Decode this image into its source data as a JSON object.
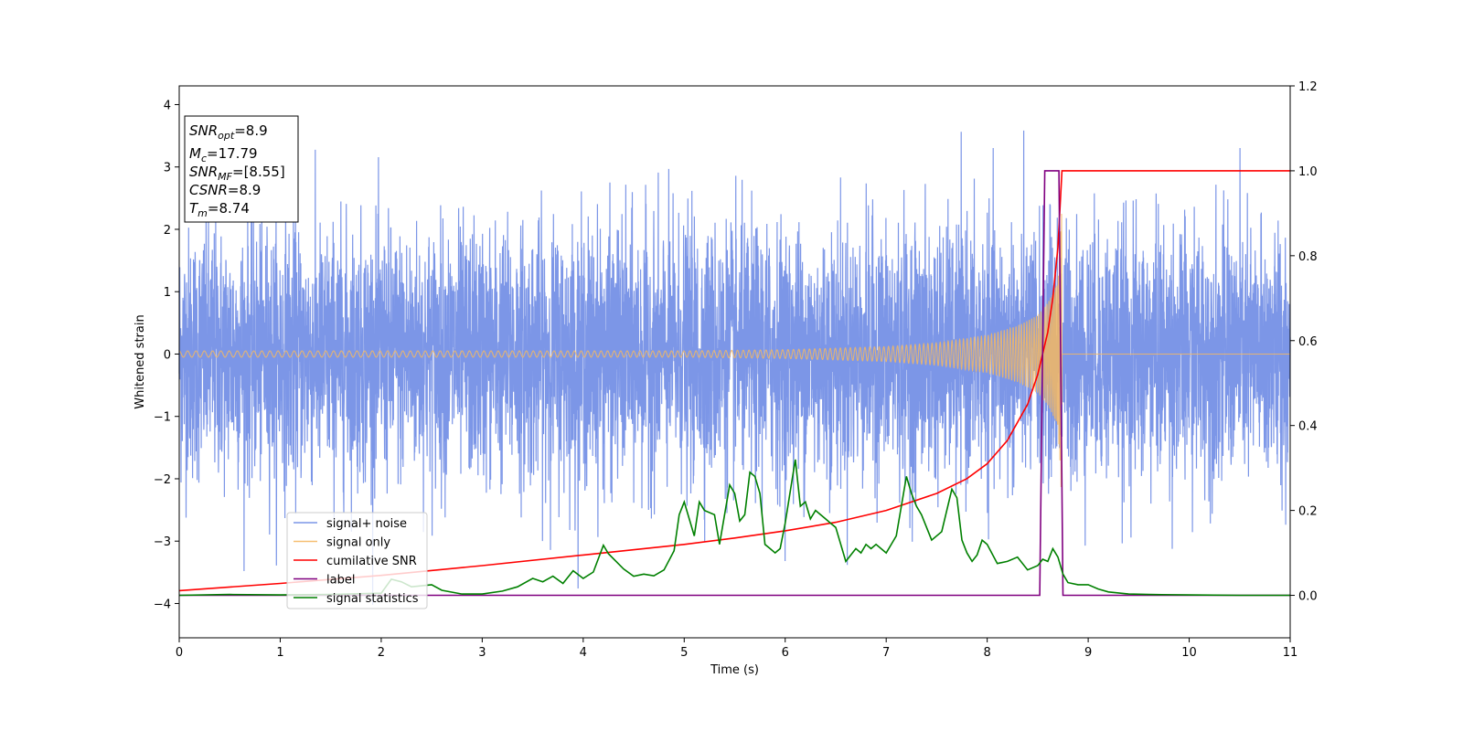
{
  "chart_data": {
    "type": "line",
    "xlabel": "Time (s)",
    "ylabel_left": "Whitened strain",
    "ylabel_right": "",
    "xlim": [
      0,
      11
    ],
    "ylim_left": [
      -4.55,
      4.3
    ],
    "ylim_right": [
      -0.1,
      1.2
    ],
    "xticks": [
      0,
      1,
      2,
      3,
      4,
      5,
      6,
      7,
      8,
      9,
      10,
      11
    ],
    "xtick_labels": [
      "0",
      "1",
      "2",
      "3",
      "4",
      "5",
      "6",
      "7",
      "8",
      "9",
      "10",
      "11"
    ],
    "yticks_left": [
      4,
      3,
      2,
      1,
      0,
      -1,
      -2,
      -3,
      -4
    ],
    "ytick_labels_left": [
      "4",
      "3",
      "2",
      "1",
      "0",
      "−1",
      "−2",
      "−3",
      "−4"
    ],
    "yticks_right": [
      1.2,
      1.0,
      0.8,
      0.6,
      0.4,
      0.2,
      0.0
    ],
    "ytick_labels_right": [
      "1.2",
      "1.0",
      "0.8",
      "0.6",
      "0.4",
      "0.2",
      "0.0"
    ],
    "grid": false,
    "legend_position": "lower-left",
    "info_box": {
      "lines": [
        {
          "base": "SNR",
          "sub": "opt",
          "rest": "=8.9"
        },
        {
          "base": "M",
          "sub": "c",
          "rest": "=17.79"
        },
        {
          "base": "SNR",
          "sub": "MF",
          "rest": "=[8.55]"
        },
        {
          "base": "CSNR",
          "sub": "",
          "rest": "=8.9"
        },
        {
          "base": "T",
          "sub": "m",
          "rest": "=8.74"
        }
      ]
    },
    "series": [
      {
        "name": "signal+ noise",
        "axis": "left",
        "color": "#7590e6",
        "description": "whitened noise, std approx 1, peaks to about ±3.9",
        "std": 1.0,
        "x_start": 0,
        "x_end": 11
      },
      {
        "name": "signal only",
        "axis": "left",
        "color": "#f5b862",
        "description": "chirp oscillation growing in amplitude until merger",
        "merger_time": 8.74,
        "envelope": {
          "x": [
            0,
            5,
            6,
            7,
            7.5,
            8.0,
            8.3,
            8.5,
            8.6,
            8.7,
            8.74
          ],
          "y": [
            0.05,
            0.05,
            0.07,
            0.12,
            0.18,
            0.3,
            0.45,
            0.62,
            0.82,
            1.15,
            2.4
          ]
        }
      },
      {
        "name": "cumilative SNR",
        "axis": "right",
        "color": "#ff0000",
        "x": [
          0,
          1,
          2,
          3,
          4,
          5,
          5.5,
          6,
          6.5,
          7,
          7.5,
          7.8,
          8.0,
          8.2,
          8.4,
          8.5,
          8.6,
          8.65,
          8.7,
          8.74,
          8.76,
          11
        ],
        "y": [
          0.011,
          0.028,
          0.047,
          0.07,
          0.095,
          0.12,
          0.135,
          0.152,
          0.172,
          0.2,
          0.24,
          0.275,
          0.31,
          0.365,
          0.45,
          0.52,
          0.62,
          0.7,
          0.82,
          1.0,
          1.0,
          1.0
        ]
      },
      {
        "name": "label",
        "axis": "right",
        "color": "#800080",
        "x": [
          0,
          8.52,
          8.57,
          8.71,
          8.75,
          11
        ],
        "y": [
          0,
          0,
          1,
          1,
          0,
          0
        ]
      },
      {
        "name": "signal statistics",
        "axis": "right",
        "color": "#008000",
        "x": [
          0,
          0.5,
          1,
          1.5,
          2.0,
          2.1,
          2.2,
          2.3,
          2.5,
          2.6,
          2.8,
          3.0,
          3.2,
          3.35,
          3.5,
          3.6,
          3.7,
          3.8,
          3.9,
          4.0,
          4.1,
          4.2,
          4.25,
          4.4,
          4.5,
          4.6,
          4.7,
          4.8,
          4.9,
          4.95,
          5.0,
          5.05,
          5.1,
          5.15,
          5.2,
          5.3,
          5.35,
          5.45,
          5.5,
          5.55,
          5.6,
          5.65,
          5.7,
          5.75,
          5.8,
          5.85,
          5.9,
          5.95,
          6.0,
          6.1,
          6.15,
          6.2,
          6.25,
          6.3,
          6.4,
          6.45,
          6.5,
          6.6,
          6.7,
          6.75,
          6.8,
          6.85,
          6.9,
          7.0,
          7.1,
          7.2,
          7.25,
          7.3,
          7.35,
          7.45,
          7.55,
          7.65,
          7.7,
          7.75,
          7.8,
          7.85,
          7.9,
          7.95,
          8.0,
          8.1,
          8.2,
          8.3,
          8.4,
          8.5,
          8.55,
          8.6,
          8.65,
          8.7,
          8.75,
          8.8,
          8.9,
          9.0,
          9.1,
          9.2,
          9.4,
          9.6,
          10.0,
          10.5,
          11.0
        ],
        "y": [
          0.0,
          0.002,
          0.001,
          0.002,
          0.005,
          0.038,
          0.032,
          0.02,
          0.025,
          0.012,
          0.003,
          0.003,
          0.01,
          0.02,
          0.04,
          0.032,
          0.045,
          0.028,
          0.058,
          0.04,
          0.055,
          0.118,
          0.098,
          0.062,
          0.045,
          0.05,
          0.046,
          0.06,
          0.105,
          0.19,
          0.22,
          0.18,
          0.14,
          0.22,
          0.2,
          0.19,
          0.12,
          0.26,
          0.24,
          0.175,
          0.19,
          0.29,
          0.28,
          0.24,
          0.12,
          0.11,
          0.1,
          0.11,
          0.17,
          0.32,
          0.21,
          0.22,
          0.18,
          0.2,
          0.18,
          0.17,
          0.16,
          0.08,
          0.11,
          0.1,
          0.12,
          0.11,
          0.12,
          0.1,
          0.14,
          0.28,
          0.24,
          0.21,
          0.19,
          0.13,
          0.15,
          0.25,
          0.23,
          0.13,
          0.1,
          0.08,
          0.095,
          0.13,
          0.12,
          0.075,
          0.08,
          0.09,
          0.06,
          0.07,
          0.085,
          0.08,
          0.11,
          0.09,
          0.05,
          0.03,
          0.025,
          0.025,
          0.015,
          0.008,
          0.003,
          0.002,
          0.001,
          0.0,
          0.0
        ]
      }
    ]
  }
}
